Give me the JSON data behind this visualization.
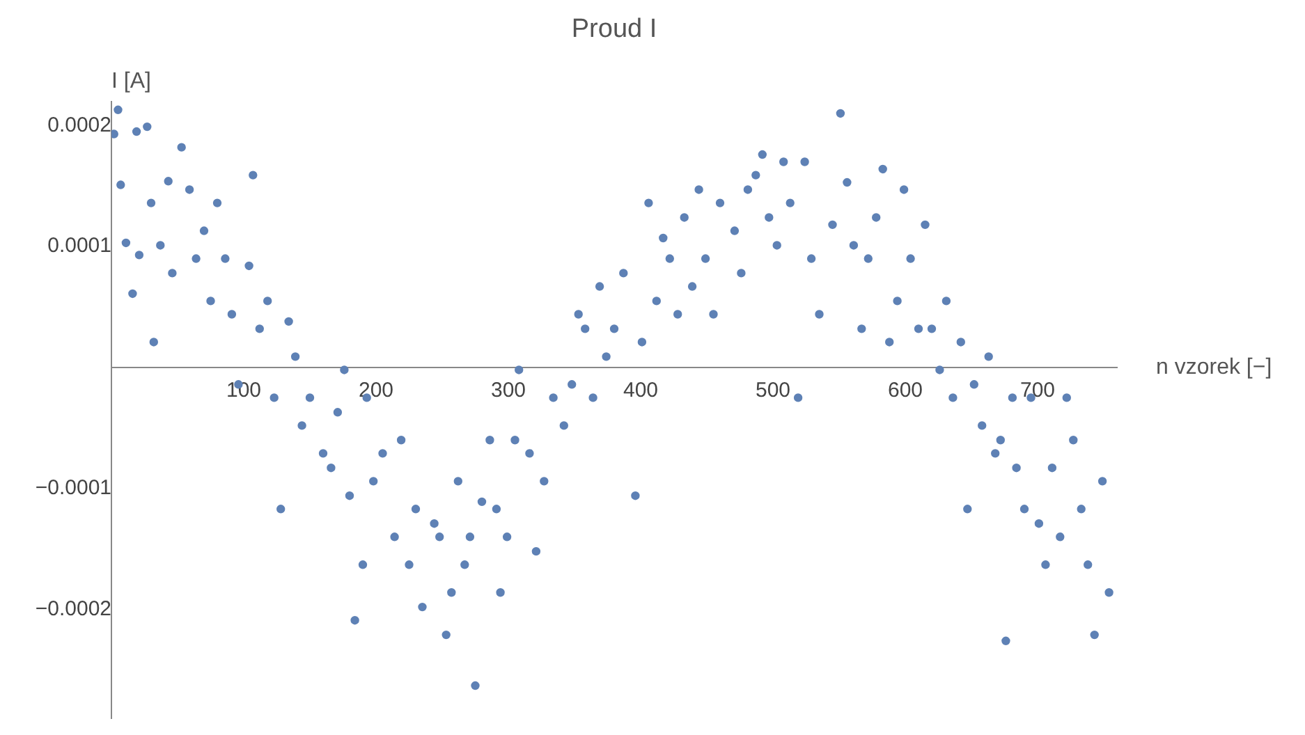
{
  "chart_data": {
    "type": "scatter",
    "title": "Proud I",
    "xlabel": "n vzorek [−]",
    "ylabel": "I [A]",
    "color": "#5e81b5",
    "marker": "circle",
    "x": [
      2,
      5,
      7,
      11,
      16,
      19,
      21,
      27,
      30,
      32,
      37,
      43,
      46,
      53,
      59,
      64,
      70,
      75,
      80,
      86,
      91,
      96,
      104,
      107,
      112,
      118,
      123,
      128,
      134,
      139,
      144,
      150,
      160,
      166,
      171,
      176,
      180,
      184,
      190,
      193,
      198,
      205,
      214,
      219,
      225,
      230,
      235,
      244,
      248,
      253,
      257,
      262,
      267,
      271,
      275,
      280,
      286,
      291,
      294,
      299,
      305,
      308,
      316,
      321,
      327,
      334,
      342,
      348,
      353,
      358,
      364,
      369,
      374,
      380,
      387,
      396,
      401,
      406,
      412,
      417,
      422,
      428,
      433,
      439,
      444,
      449,
      455,
      460,
      471,
      476,
      481,
      487,
      492,
      497,
      503,
      508,
      513,
      519,
      524,
      529,
      535,
      545,
      551,
      556,
      561,
      567,
      572,
      578,
      583,
      588,
      594,
      599,
      604,
      610,
      615,
      620,
      626,
      631,
      636,
      642,
      647,
      652,
      658,
      663,
      668,
      672,
      676,
      681,
      684,
      690,
      695,
      701,
      706,
      711,
      717,
      722,
      727,
      733,
      738,
      743,
      749,
      754
    ],
    "values": [
      0.000193,
      0.000213,
      0.000151,
      0.000103,
      6.1e-05,
      0.000195,
      9.3e-05,
      0.000199,
      0.000136,
      2.1e-05,
      0.000101,
      0.000154,
      7.8e-05,
      0.000182,
      0.000147,
      9e-05,
      0.000113,
      5.5e-05,
      0.000136,
      9e-05,
      4.4e-05,
      -1.4e-05,
      8.4e-05,
      0.000159,
      3.2e-05,
      5.5e-05,
      -2.5e-05,
      -0.000117,
      3.8e-05,
      9e-06,
      -4.8e-05,
      -2.5e-05,
      -7.1e-05,
      -8.3e-05,
      -3.7e-05,
      -2e-06,
      -0.000106,
      -0.000209,
      -0.000163,
      -2.5e-05,
      -9.4e-05,
      -7.1e-05,
      -0.00014,
      -6e-05,
      -0.000163,
      -0.000117,
      -0.000198,
      -0.000129,
      -0.00014,
      -0.000221,
      -0.000186,
      -9.4e-05,
      -0.000163,
      -0.00014,
      -0.000263,
      -0.000111,
      -6e-05,
      -0.000117,
      -0.000186,
      -0.00014,
      -6e-05,
      -2e-06,
      -7.1e-05,
      -0.000152,
      -9.4e-05,
      -2.5e-05,
      -4.8e-05,
      -1.4e-05,
      4.4e-05,
      3.2e-05,
      -2.5e-05,
      6.7e-05,
      9e-06,
      3.2e-05,
      7.8e-05,
      -0.000106,
      2.1e-05,
      0.000136,
      5.5e-05,
      0.000107,
      9e-05,
      4.4e-05,
      0.000124,
      6.7e-05,
      0.000147,
      9e-05,
      4.4e-05,
      0.000136,
      0.000113,
      7.8e-05,
      0.000147,
      0.000159,
      0.000176,
      0.000124,
      0.000101,
      0.00017,
      0.000136,
      -2.5e-05,
      0.00017,
      9e-05,
      4.4e-05,
      0.000118,
      0.00021,
      0.000153,
      0.000101,
      3.2e-05,
      9e-05,
      0.000124,
      0.000164,
      2.1e-05,
      5.5e-05,
      0.000147,
      9e-05,
      3.2e-05,
      0.000118,
      3.2e-05,
      -2e-06,
      5.5e-05,
      -2.5e-05,
      2.1e-05,
      -0.000117,
      -1.4e-05,
      -4.8e-05,
      9e-06,
      -7.1e-05,
      -6e-05,
      -0.000226,
      -2.5e-05,
      -8.3e-05,
      -0.000117,
      -2.5e-05,
      -0.000129,
      -0.000163,
      -8.3e-05,
      -0.00014,
      -2.5e-05,
      -6e-05,
      -0.000117,
      -0.000163,
      -0.000221,
      -9.4e-05,
      -0.000186
    ],
    "xlim": [
      0,
      760
    ],
    "xticks": [
      100,
      200,
      300,
      400,
      500,
      600,
      700
    ],
    "ylim": [
      -0.00029,
      0.00022
    ],
    "yticks": [
      {
        "value": -0.0002,
        "label": "−0.0002"
      },
      {
        "value": -0.0001,
        "label": "−0.0001"
      },
      0.0001,
      0.0002
    ]
  }
}
